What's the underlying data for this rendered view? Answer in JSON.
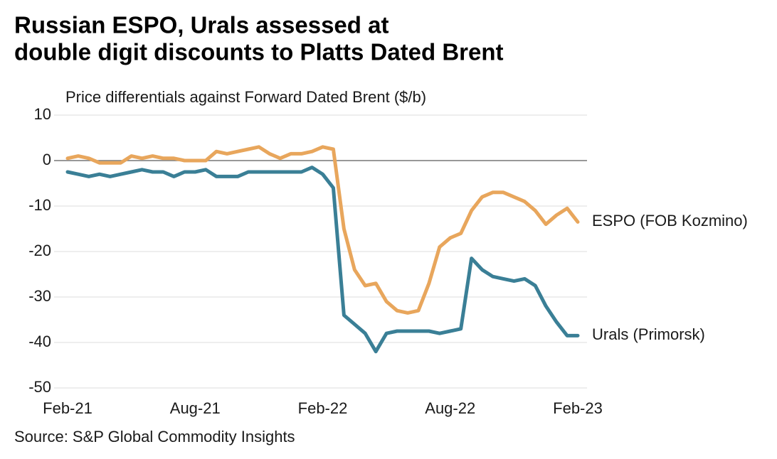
{
  "chart_data": {
    "type": "line",
    "title": [
      "Russian ESPO, Urals assessed at",
      "double digit discounts to Platts Dated Brent"
    ],
    "subtitle": "Price differentials against Forward Dated Brent ($/b)",
    "source": "Source: S&P Global Commodity Insights",
    "categories": [
      "Feb-21",
      null,
      null,
      null,
      null,
      null,
      null,
      null,
      null,
      null,
      null,
      null,
      "Aug-21",
      null,
      null,
      null,
      null,
      null,
      null,
      null,
      null,
      null,
      null,
      null,
      "Feb-22",
      null,
      null,
      null,
      null,
      null,
      null,
      null,
      null,
      null,
      null,
      null,
      "Aug-22",
      null,
      null,
      null,
      null,
      null,
      null,
      null,
      null,
      null,
      null,
      null,
      "Feb-23"
    ],
    "series": [
      {
        "name": "ESPO (FOB Kozmino)",
        "color": "#e8a65c",
        "values": [
          0.5,
          1,
          0.5,
          -0.5,
          -0.5,
          -0.5,
          1,
          0.5,
          1,
          0.5,
          0.5,
          0,
          0,
          0,
          2,
          1.5,
          2,
          2.5,
          3,
          1.5,
          0.5,
          1.5,
          1.5,
          2,
          3,
          2.5,
          -15,
          -24,
          -27.5,
          -27,
          -31,
          -33,
          -33.5,
          -33,
          -27,
          -19,
          -17,
          -16,
          -11,
          -8,
          -7,
          -7,
          -8,
          -9,
          -11,
          -14,
          -12,
          -10.5,
          -13.5
        ]
      },
      {
        "name": "Urals (Primorsk)",
        "color": "#3a7f96",
        "values": [
          -2.5,
          -3,
          -3.5,
          -3,
          -3.5,
          -3,
          -2.5,
          -2,
          -2.5,
          -2.5,
          -3.5,
          -2.5,
          -2.5,
          -2,
          -3.5,
          -3.5,
          -3.5,
          -2.5,
          -2.5,
          -2.5,
          -2.5,
          -2.5,
          -2.5,
          -1.5,
          -3,
          -6,
          -34,
          -36,
          -38,
          -42,
          -38,
          -37.5,
          -37.5,
          -37.5,
          -37.5,
          -38,
          -37.5,
          -37,
          -21.5,
          -24,
          -25.5,
          -26,
          -26.5,
          -26,
          -27.5,
          -32,
          -35.5,
          -38.5,
          -38.5
        ]
      }
    ],
    "ylim": [
      -50,
      10
    ],
    "yticks": [
      -50,
      -40,
      -30,
      -20,
      -10,
      0,
      10
    ],
    "grid": true
  }
}
